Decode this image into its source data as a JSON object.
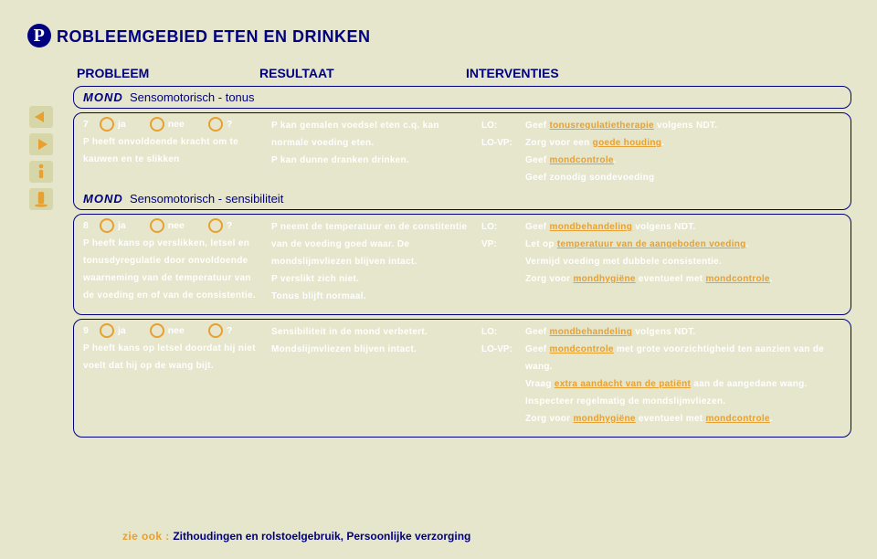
{
  "colors": {
    "navy": "#000080",
    "orange": "#e8a030",
    "bg": "#e6e6cc",
    "btn": "#d6d6a8"
  },
  "page_title": "ROBLEEMGEBIED ETEN EN DRINKEN",
  "p_letter": "P",
  "headers": {
    "problem": "PROBLEEM",
    "result": "RESULTAAT",
    "interv": "INTERVENTIES"
  },
  "opt": {
    "ja": "ja",
    "nee": "nee",
    "q": "?"
  },
  "sect1": {
    "mond": "MOND",
    "sub": "Sensomotorisch - tonus"
  },
  "sect2": {
    "mond": "MOND",
    "sub": "Sensomotorisch - sensibiliteit"
  },
  "q7": {
    "num": "7",
    "prob": "P heeft onvoldoende kracht om te kauwen en te slikken",
    "res": "P kan gemalen voedsel eten c.q. kan normale voeding eten.\nP kan dunne dranken drinken.",
    "int": [
      {
        "tag": "LO:",
        "parts": [
          {
            "t": "Geef "
          },
          {
            "t": "tonusregulatietherapie",
            "link": true
          },
          {
            "t": " volgens NDT."
          }
        ]
      },
      {
        "tag": "LO-VP:",
        "parts": [
          {
            "t": "Zorg voor een "
          },
          {
            "t": "goede houding",
            "link": true
          },
          {
            "t": "."
          }
        ]
      },
      {
        "tag": "",
        "parts": [
          {
            "t": "Geef "
          },
          {
            "t": "mondcontrole",
            "link": true
          },
          {
            "t": "."
          }
        ]
      },
      {
        "tag": "",
        "parts": [
          {
            "t": "Geef zonodig sondevoeding"
          }
        ]
      }
    ]
  },
  "q8": {
    "num": "8",
    "prob": "P heeft kans op verslikken, letsel en tonusdyregulatie door onvoldoende waarneming van de temperatuur van de voeding en of van de consistentie.",
    "res": "P neemt de temperatuur en de constitentie van de voeding goed waar. De mondslijmvliezen blijven intact.\nP verslikt zich niet.\nTonus blijft normaal.",
    "int": [
      {
        "tag": "LO:",
        "parts": [
          {
            "t": "Geef "
          },
          {
            "t": "mondbehandeling",
            "link": true
          },
          {
            "t": " volgens NDT."
          }
        ]
      },
      {
        "tag": "VP:",
        "parts": [
          {
            "t": "Let op "
          },
          {
            "t": "temperatuur van de aangeboden voeding",
            "link": true
          },
          {
            "t": "."
          }
        ]
      },
      {
        "tag": "",
        "parts": [
          {
            "t": "Vermijd voeding met dubbele consistentie."
          }
        ]
      },
      {
        "tag": "",
        "parts": [
          {
            "t": "Zorg voor "
          },
          {
            "t": "mondhygiëne",
            "link": true
          },
          {
            "t": " eventueel met "
          },
          {
            "t": "mondcontrole",
            "link": true
          },
          {
            "t": "."
          }
        ]
      }
    ]
  },
  "q9": {
    "num": "9",
    "prob": "P heeft kans op letsel doordat hij niet voelt dat hij op de wang bijt.",
    "res": "Sensibiliteit in de mond verbetert. Mondslijmvliezen blijven intact.",
    "int": [
      {
        "tag": "LO:",
        "parts": [
          {
            "t": "Geef "
          },
          {
            "t": "mondbehandeling",
            "link": true
          },
          {
            "t": " volgens NDT."
          }
        ]
      },
      {
        "tag": "LO-VP:",
        "parts": [
          {
            "t": "Geef "
          },
          {
            "t": "mondcontrole",
            "link": true
          },
          {
            "t": " met grote voorzichtigheid ten aanzien van de wang."
          }
        ]
      },
      {
        "tag": "",
        "parts": [
          {
            "t": "Vraag "
          },
          {
            "t": "extra aandacht van de patiënt",
            "link": true
          },
          {
            "t": " aan de aangedane wang."
          }
        ]
      },
      {
        "tag": "",
        "parts": [
          {
            "t": "Inspecteer regelmatig de mondslijmvliezen."
          }
        ]
      },
      {
        "tag": "",
        "parts": [
          {
            "t": "Zorg voor "
          },
          {
            "t": "mondhygiëne",
            "link": true
          },
          {
            "t": " eventueel met "
          },
          {
            "t": "mondcontrole",
            "link": true
          },
          {
            "t": "."
          }
        ]
      }
    ]
  },
  "seealso": {
    "label": "zie ook  :  ",
    "targets": "Zithoudingen en rolstoelgebruik, Persoonlijke verzorging"
  }
}
